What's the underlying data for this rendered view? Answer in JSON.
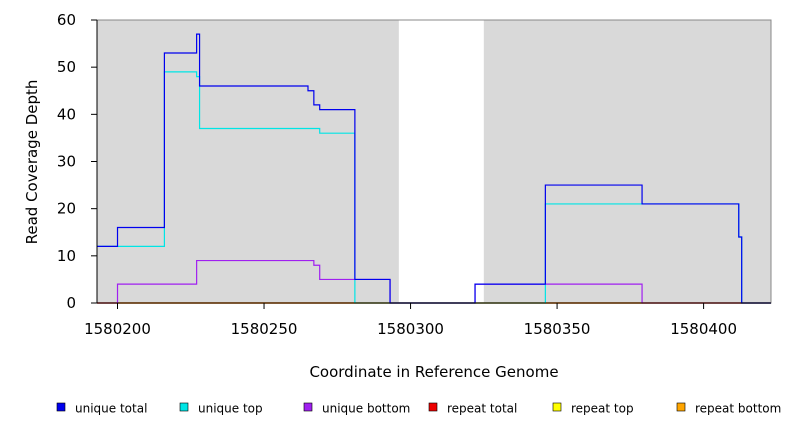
{
  "chart_data": {
    "type": "line",
    "title": "",
    "xlabel": "Coordinate in Reference Genome",
    "ylabel": "Read Coverage Depth",
    "xlim": [
      1580193,
      1580423
    ],
    "ylim": [
      0,
      60
    ],
    "x_ticks": [
      1580200,
      1580250,
      1580300,
      1580350,
      1580400
    ],
    "y_ticks": [
      0,
      10,
      20,
      30,
      40,
      50,
      60
    ],
    "x_tick_labels": [
      "1580200",
      "1580250",
      "1580300",
      "1580350",
      "1580400"
    ],
    "y_tick_labels": [
      "0",
      "10",
      "20",
      "30",
      "40",
      "50",
      "60"
    ],
    "shaded_regions": [
      [
        1580193,
        1580296
      ],
      [
        1580325,
        1580423
      ]
    ],
    "background_color": "#d9d9d9",
    "legend_position": "bottom",
    "series": [
      {
        "name": "unique total",
        "color": "#0000ee",
        "points": [
          [
            1580193,
            12
          ],
          [
            1580200,
            12
          ],
          [
            1580200,
            16
          ],
          [
            1580216,
            16
          ],
          [
            1580216,
            53
          ],
          [
            1580227,
            53
          ],
          [
            1580227,
            57
          ],
          [
            1580228,
            57
          ],
          [
            1580228,
            46
          ],
          [
            1580265,
            46
          ],
          [
            1580265,
            45
          ],
          [
            1580267,
            45
          ],
          [
            1580267,
            42
          ],
          [
            1580269,
            42
          ],
          [
            1580269,
            41
          ],
          [
            1580281,
            41
          ],
          [
            1580281,
            5
          ],
          [
            1580293,
            5
          ],
          [
            1580293,
            0
          ],
          [
            1580322,
            0
          ],
          [
            1580322,
            4
          ],
          [
            1580346,
            4
          ],
          [
            1580346,
            25
          ],
          [
            1580379,
            25
          ],
          [
            1580379,
            21
          ],
          [
            1580412,
            21
          ],
          [
            1580412,
            14
          ],
          [
            1580413,
            14
          ],
          [
            1580413,
            0
          ],
          [
            1580423,
            0
          ]
        ]
      },
      {
        "name": "unique top",
        "color": "#00e5e5",
        "points": [
          [
            1580193,
            12
          ],
          [
            1580216,
            12
          ],
          [
            1580216,
            49
          ],
          [
            1580227,
            49
          ],
          [
            1580227,
            48
          ],
          [
            1580228,
            48
          ],
          [
            1580228,
            37
          ],
          [
            1580269,
            37
          ],
          [
            1580269,
            36
          ],
          [
            1580281,
            36
          ],
          [
            1580281,
            0
          ],
          [
            1580346,
            0
          ],
          [
            1580346,
            21
          ],
          [
            1580412,
            21
          ],
          [
            1580412,
            14
          ],
          [
            1580413,
            14
          ],
          [
            1580413,
            0
          ],
          [
            1580423,
            0
          ]
        ]
      },
      {
        "name": "unique bottom",
        "color": "#a020f0",
        "points": [
          [
            1580193,
            0
          ],
          [
            1580200,
            0
          ],
          [
            1580200,
            4
          ],
          [
            1580227,
            4
          ],
          [
            1580227,
            9
          ],
          [
            1580267,
            9
          ],
          [
            1580267,
            8
          ],
          [
            1580269,
            8
          ],
          [
            1580269,
            5
          ],
          [
            1580293,
            5
          ],
          [
            1580293,
            0
          ],
          [
            1580322,
            0
          ],
          [
            1580322,
            4
          ],
          [
            1580379,
            4
          ],
          [
            1580379,
            0
          ],
          [
            1580423,
            0
          ]
        ]
      },
      {
        "name": "repeat total",
        "color": "#ee0000",
        "points": [
          [
            1580193,
            0
          ],
          [
            1580423,
            0
          ]
        ]
      },
      {
        "name": "repeat top",
        "color": "#ffff00",
        "points": [
          [
            1580193,
            0
          ],
          [
            1580423,
            0
          ]
        ]
      },
      {
        "name": "repeat bottom",
        "color": "#ffa500",
        "points": [
          [
            1580193,
            0
          ],
          [
            1580423,
            0
          ]
        ]
      }
    ]
  }
}
